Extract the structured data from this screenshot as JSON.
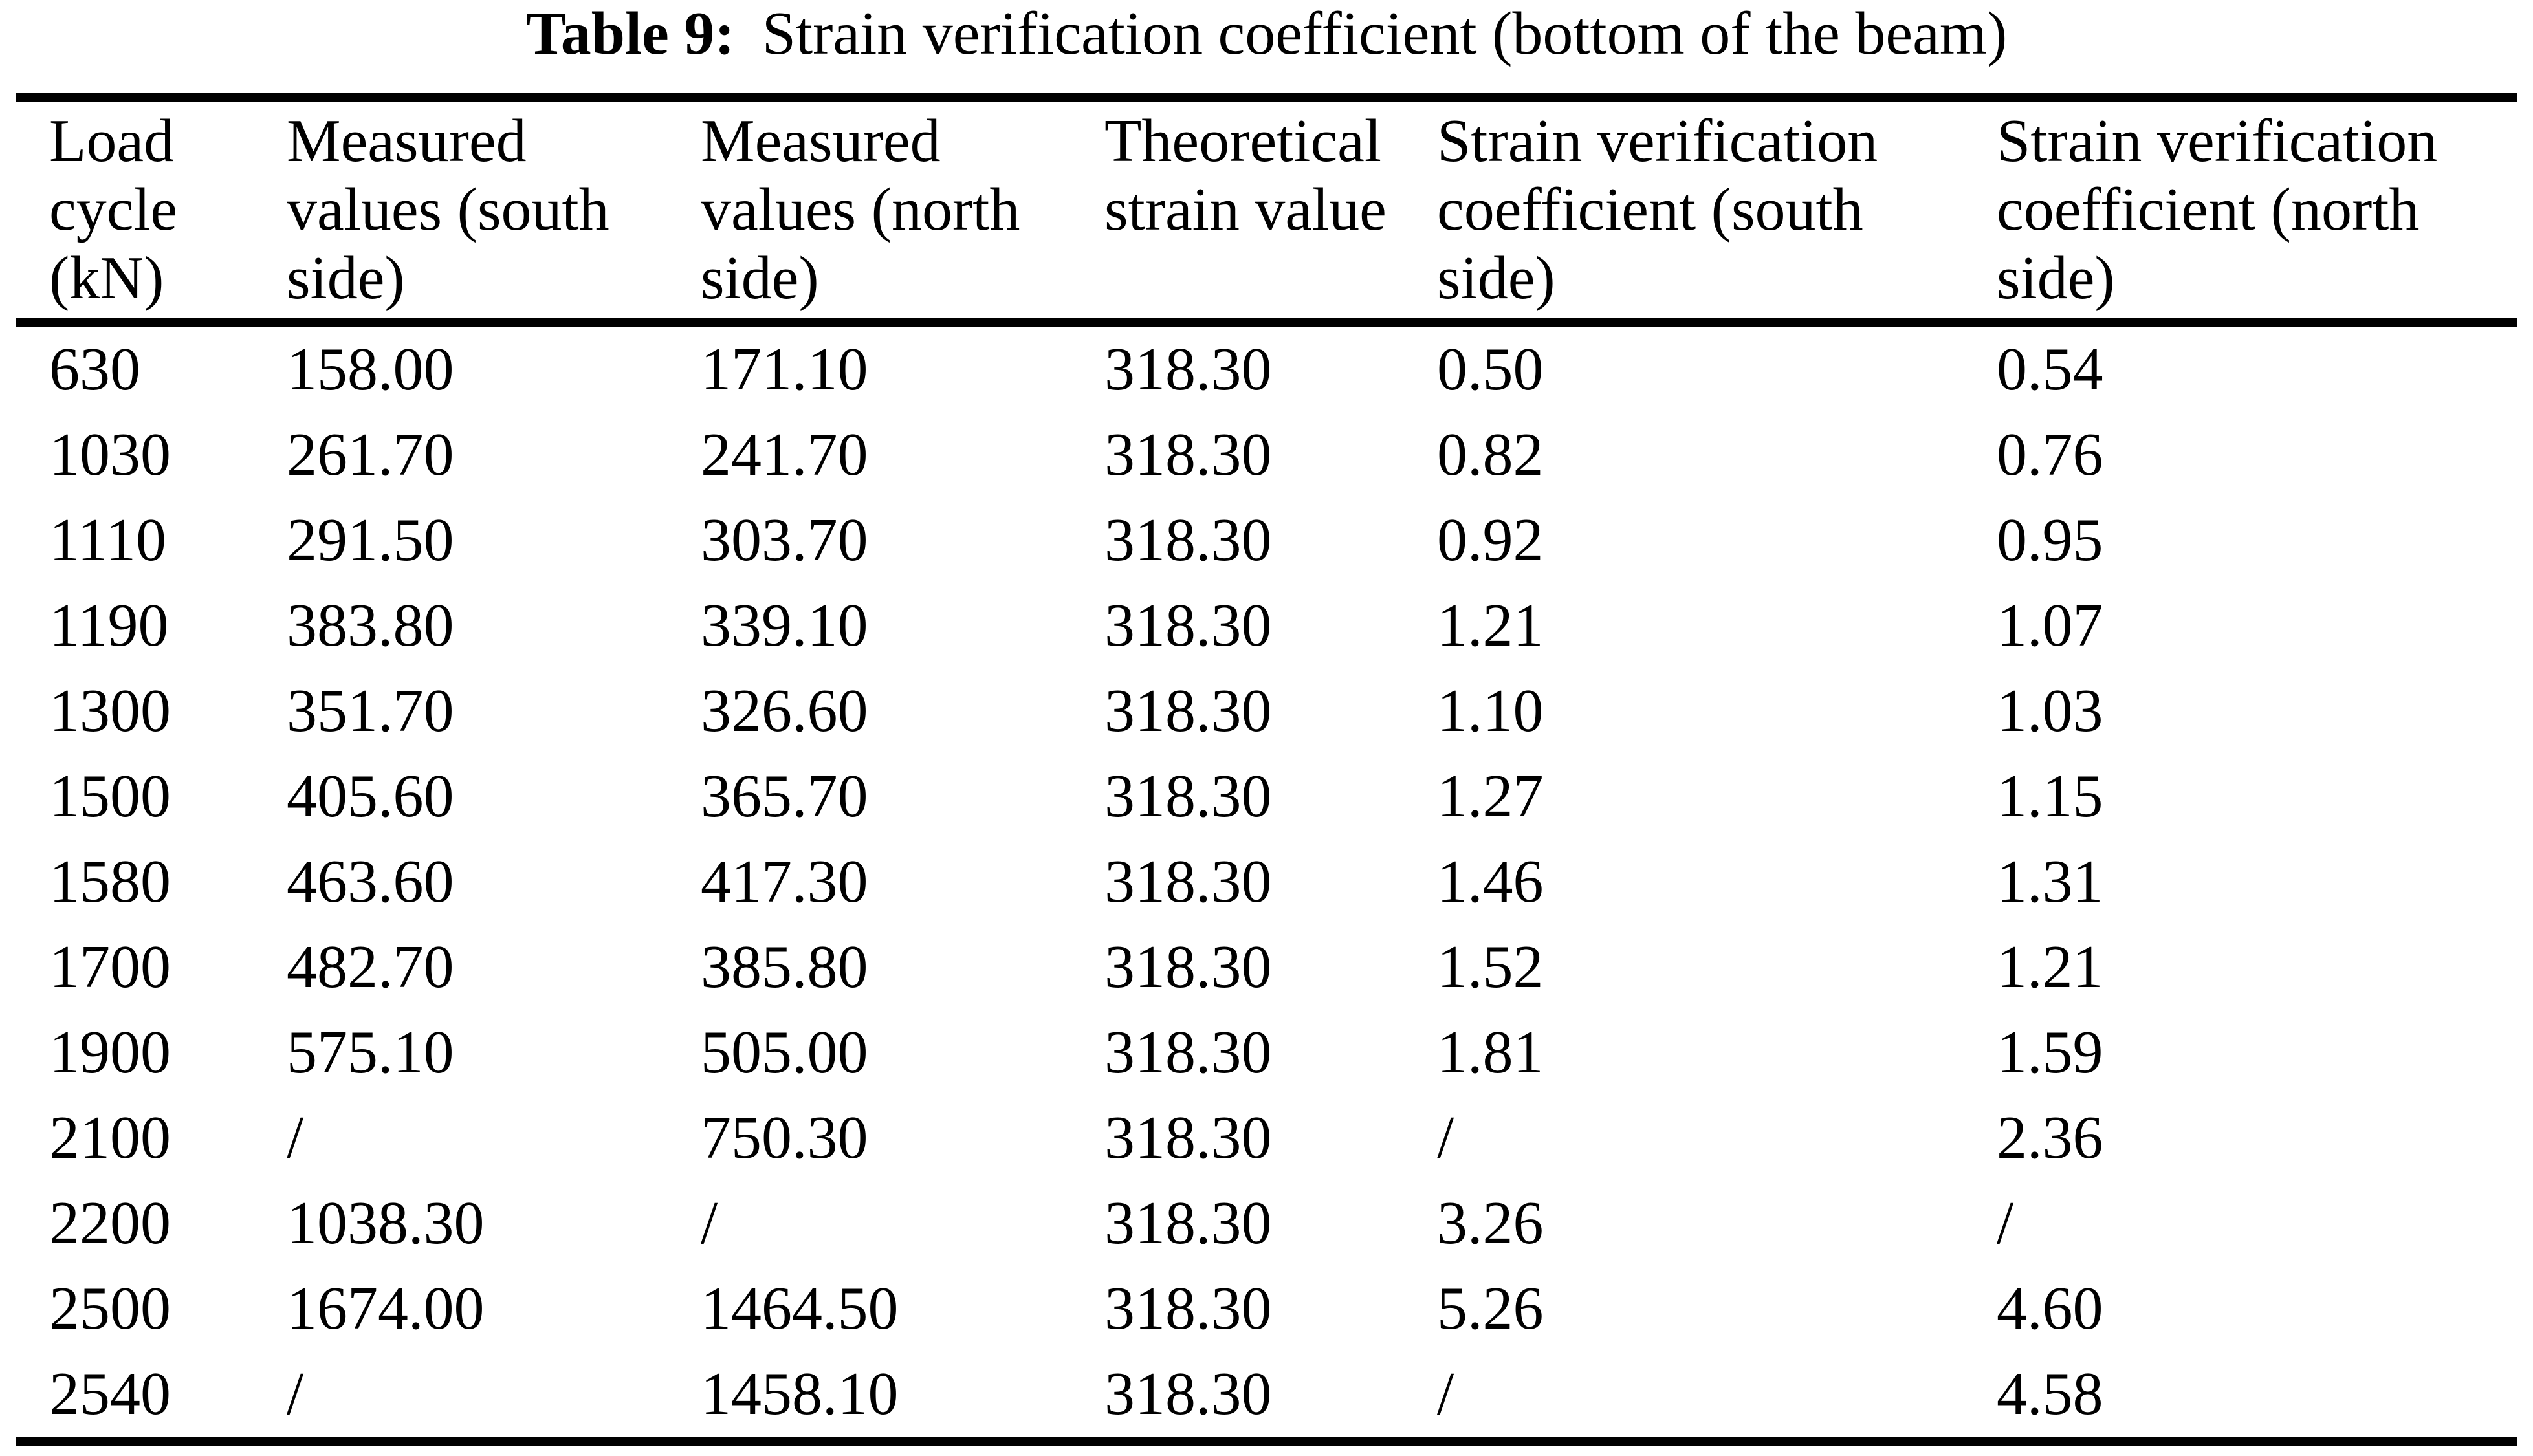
{
  "page": {
    "background_color": "#ffffff",
    "text_color": "#000000",
    "rule_color": "#000000"
  },
  "caption": {
    "label": "Table 9:",
    "title": "Strain verification coefficient (bottom of the beam)"
  },
  "table": {
    "columns": [
      {
        "label": "Load cycle (kN)",
        "lines": [
          "Load",
          "cycle",
          "(kN)"
        ]
      },
      {
        "label": "Measured values (south side)",
        "lines": [
          "Measured",
          "values (south",
          "side)"
        ]
      },
      {
        "label": "Measured values (north side)",
        "lines": [
          "Measured",
          "values (north",
          "side)"
        ]
      },
      {
        "label": "Theoretical strain value",
        "lines": [
          "Theoretical",
          "strain value"
        ]
      },
      {
        "label": "Strain verification coefficient (south side)",
        "lines": [
          "Strain verification",
          "coefficient (south",
          "side)"
        ]
      },
      {
        "label": "Strain verification coefficient (north side)",
        "lines": [
          "Strain verification",
          "coefficient (north",
          "side)"
        ]
      }
    ],
    "missing_value_symbol": "/",
    "rows": [
      [
        "630",
        "158.00",
        "171.10",
        "318.30",
        "0.50",
        "0.54"
      ],
      [
        "1030",
        "261.70",
        "241.70",
        "318.30",
        "0.82",
        "0.76"
      ],
      [
        "1110",
        "291.50",
        "303.70",
        "318.30",
        "0.92",
        "0.95"
      ],
      [
        "1190",
        "383.80",
        "339.10",
        "318.30",
        "1.21",
        "1.07"
      ],
      [
        "1300",
        "351.70",
        "326.60",
        "318.30",
        "1.10",
        "1.03"
      ],
      [
        "1500",
        "405.60",
        "365.70",
        "318.30",
        "1.27",
        "1.15"
      ],
      [
        "1580",
        "463.60",
        "417.30",
        "318.30",
        "1.46",
        "1.31"
      ],
      [
        "1700",
        "482.70",
        "385.80",
        "318.30",
        "1.52",
        "1.21"
      ],
      [
        "1900",
        "575.10",
        "505.00",
        "318.30",
        "1.81",
        "1.59"
      ],
      [
        "2100",
        "/",
        "750.30",
        "318.30",
        "/",
        "2.36"
      ],
      [
        "2200",
        "1038.30",
        "/",
        "318.30",
        "3.26",
        "/"
      ],
      [
        "2500",
        "1674.00",
        "1464.50",
        "318.30",
        "5.26",
        "4.60"
      ],
      [
        "2540",
        "/",
        "1458.10",
        "318.30",
        "/",
        "4.58"
      ]
    ]
  }
}
